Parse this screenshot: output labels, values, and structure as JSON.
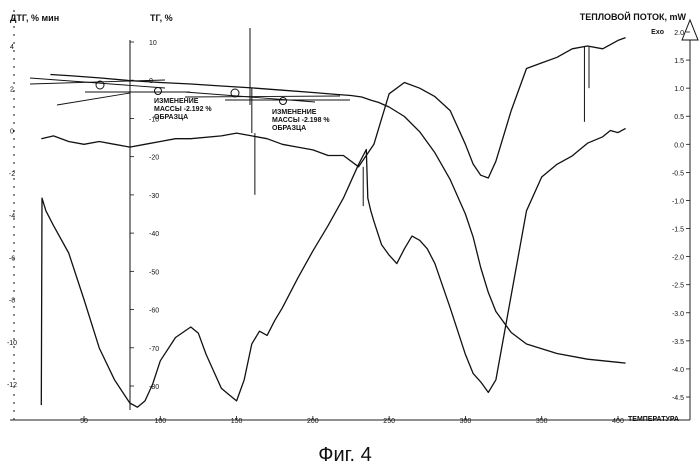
{
  "figure_caption": "Фиг. 4",
  "chart_data": {
    "type": "line",
    "title": "",
    "axes": {
      "x": {
        "label": "ТЕМПЕРАТУРА",
        "range": [
          20,
          420
        ],
        "ticks": [
          "50",
          "100",
          "150",
          "200",
          "250",
          "300",
          "350",
          "400"
        ]
      },
      "dtg": {
        "label": "ДТГ, % мин",
        "range": [
          -14,
          5
        ],
        "ticks": [
          "4",
          "2",
          "0",
          "-2",
          "-4",
          "-6",
          "-8",
          "-10",
          "-12"
        ]
      },
      "tg": {
        "label": "ТГ, %",
        "range": [
          -92,
          17
        ],
        "ticks": [
          "10",
          "0",
          "-10",
          "-20",
          "-30",
          "-40",
          "-50",
          "-60",
          "-70",
          "-80"
        ]
      },
      "heat": {
        "label": "ТЕПЛОВОЙ ПОТОК, mW",
        "sublabel": "Exo",
        "range": [
          -5,
          2.4
        ],
        "ticks": [
          "2.0",
          "1.5",
          "1.0",
          "0.5",
          "0.0",
          "-0.5",
          "-1.0",
          "-1.5",
          "-2.0",
          "-2.5",
          "-3.0",
          "-3.5",
          "-4.0",
          "-4.5"
        ]
      }
    },
    "annotations": [
      {
        "lines": [
          "ИЗМЕНЕНИЕ",
          "МАССЫ -2.192 %",
          "ОБРАЗЦА"
        ]
      },
      {
        "lines": [
          "ИЗМЕНЕНИЕ",
          "МАССЫ -2.198 %",
          "ОБРАЗЦА"
        ]
      }
    ],
    "series": [
      {
        "key": "tg",
        "axis": "tg",
        "x": [
          28,
          40,
          60,
          80,
          100,
          120,
          140,
          160,
          180,
          200,
          215,
          225,
          232,
          238,
          243,
          250,
          260,
          270,
          280,
          290,
          300,
          305,
          310,
          315,
          320,
          330,
          340,
          360,
          380,
          400,
          405
        ],
        "y": [
          1.5,
          1.2,
          0.6,
          -0.1,
          -0.6,
          -1.0,
          -1.5,
          -2.0,
          -2.6,
          -3.2,
          -3.7,
          -4.0,
          -4.4,
          -5.2,
          -5.8,
          -7.0,
          -9.5,
          -13.5,
          -19.0,
          -26.0,
          -35.0,
          -41.0,
          -49.0,
          -55.5,
          -60.5,
          -66.0,
          -69.0,
          -71.5,
          -73.0,
          -73.8,
          -74.0
        ]
      },
      {
        "key": "dtg",
        "axis": "dtg",
        "x": [
          22,
          22.5,
          25,
          30,
          40,
          50,
          60,
          70,
          80,
          85,
          90,
          95,
          100,
          110,
          120,
          125,
          130,
          140,
          145,
          150,
          155,
          160,
          165,
          170,
          175,
          180,
          190,
          200,
          210,
          220,
          225,
          230,
          235,
          236,
          238,
          240,
          245,
          250,
          255,
          260,
          265,
          270,
          275,
          280,
          290,
          300,
          305,
          310,
          315,
          320,
          330,
          340,
          350,
          360,
          370,
          380,
          390,
          395,
          400,
          405
        ],
        "y": [
          -13.0,
          -3.2,
          -3.8,
          -4.5,
          -5.8,
          -8.0,
          -10.3,
          -11.8,
          -12.9,
          -13.1,
          -12.8,
          -12.0,
          -10.9,
          -9.8,
          -9.3,
          -9.6,
          -10.6,
          -12.2,
          -12.5,
          -12.8,
          -11.8,
          -10.1,
          -9.5,
          -9.7,
          -9.0,
          -8.4,
          -7.0,
          -5.7,
          -4.5,
          -3.2,
          -2.4,
          -1.6,
          -0.9,
          -3.2,
          -3.8,
          -4.3,
          -5.4,
          -5.9,
          -6.3,
          -5.6,
          -5.0,
          -5.2,
          -5.6,
          -6.3,
          -8.4,
          -10.6,
          -11.5,
          -11.9,
          -12.4,
          -11.8,
          -7.8,
          -3.8,
          -2.2,
          -1.6,
          -1.2,
          -0.6,
          -0.3,
          0.0,
          -0.1,
          0.1
        ]
      },
      {
        "key": "heat",
        "axis": "heat",
        "x": [
          22,
          30,
          40,
          50,
          60,
          70,
          80,
          90,
          100,
          110,
          120,
          140,
          150,
          160,
          170,
          180,
          190,
          200,
          210,
          220,
          230,
          240,
          250,
          260,
          270,
          280,
          290,
          300,
          305,
          310,
          315,
          320,
          330,
          340,
          350,
          360,
          370,
          380,
          390,
          400,
          405
        ],
        "y": [
          0.1,
          0.15,
          0.05,
          0.0,
          0.05,
          0.0,
          -0.05,
          0.0,
          0.05,
          0.1,
          0.1,
          0.15,
          0.2,
          0.15,
          0.1,
          0.0,
          -0.05,
          -0.1,
          -0.2,
          -0.2,
          -0.4,
          0.0,
          0.9,
          1.1,
          1.0,
          0.85,
          0.6,
          0.0,
          -0.35,
          -0.55,
          -0.6,
          -0.3,
          0.6,
          1.35,
          1.45,
          1.55,
          1.7,
          1.75,
          1.7,
          1.85,
          1.9
        ]
      }
    ]
  }
}
